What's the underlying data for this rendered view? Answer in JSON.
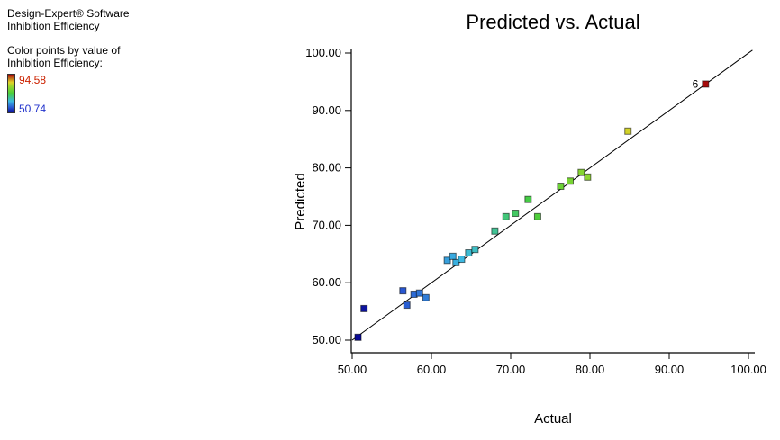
{
  "sidebar": {
    "software": "Design-Expert® Software",
    "response": "Inhibition Efficiency",
    "color_caption_1": "Color points by value of",
    "color_caption_2": "Inhibition Efficiency:",
    "legend": {
      "max_label": "94.58",
      "min_label": "50.74",
      "max_color": "#cc2200",
      "min_color": "#2233cc",
      "gradient_stops": [
        {
          "t": 0.0,
          "color": "#0a0a96"
        },
        {
          "t": 0.13,
          "color": "#2858d2"
        },
        {
          "t": 0.3,
          "color": "#3cb9e1"
        },
        {
          "t": 0.5,
          "color": "#46cd3c"
        },
        {
          "t": 0.68,
          "color": "#96d72d"
        },
        {
          "t": 0.8,
          "color": "#e1d228"
        },
        {
          "t": 1.0,
          "color": "#a50a0a"
        }
      ]
    }
  },
  "chart_data": {
    "type": "scatter",
    "title": "Predicted vs. Actual",
    "xlabel": "Actual",
    "ylabel": "Predicted",
    "xticks": [
      50,
      60,
      70,
      80,
      90,
      100
    ],
    "xtick_labels": [
      "50.00",
      "60.00",
      "70.00",
      "80.00",
      "90.00",
      "100.00"
    ],
    "yticks": [
      50,
      60,
      70,
      80,
      90,
      100
    ],
    "ytick_labels": [
      "50.00",
      "60.00",
      "70.00",
      "80.00",
      "90.00",
      "100.00"
    ],
    "xlim": [
      49.3,
      100.9
    ],
    "ylim": [
      47.8,
      100.6
    ],
    "grid": false,
    "reference_line": {
      "from": [
        50,
        50
      ],
      "to": [
        100.5,
        100.5
      ]
    },
    "color_scale": {
      "min": 50.74,
      "max": 94.58
    },
    "points": [
      {
        "actual": 50.74,
        "predicted": 50.5
      },
      {
        "actual": 51.5,
        "predicted": 55.5
      },
      {
        "actual": 56.4,
        "predicted": 58.6
      },
      {
        "actual": 56.9,
        "predicted": 56.1
      },
      {
        "actual": 57.8,
        "predicted": 58.0
      },
      {
        "actual": 58.5,
        "predicted": 58.2
      },
      {
        "actual": 59.3,
        "predicted": 57.4
      },
      {
        "actual": 62.0,
        "predicted": 63.9
      },
      {
        "actual": 62.7,
        "predicted": 64.6
      },
      {
        "actual": 63.1,
        "predicted": 63.5
      },
      {
        "actual": 63.8,
        "predicted": 64.1
      },
      {
        "actual": 64.7,
        "predicted": 65.2
      },
      {
        "actual": 65.5,
        "predicted": 65.8
      },
      {
        "actual": 68.0,
        "predicted": 69.0
      },
      {
        "actual": 69.4,
        "predicted": 71.5
      },
      {
        "actual": 70.6,
        "predicted": 72.1
      },
      {
        "actual": 72.2,
        "predicted": 74.5
      },
      {
        "actual": 73.4,
        "predicted": 71.5
      },
      {
        "actual": 76.3,
        "predicted": 76.8
      },
      {
        "actual": 77.5,
        "predicted": 77.7
      },
      {
        "actual": 78.9,
        "predicted": 79.2
      },
      {
        "actual": 79.7,
        "predicted": 78.4
      },
      {
        "actual": 84.8,
        "predicted": 86.4
      },
      {
        "actual": 94.58,
        "predicted": 94.6,
        "label": "6"
      }
    ]
  }
}
